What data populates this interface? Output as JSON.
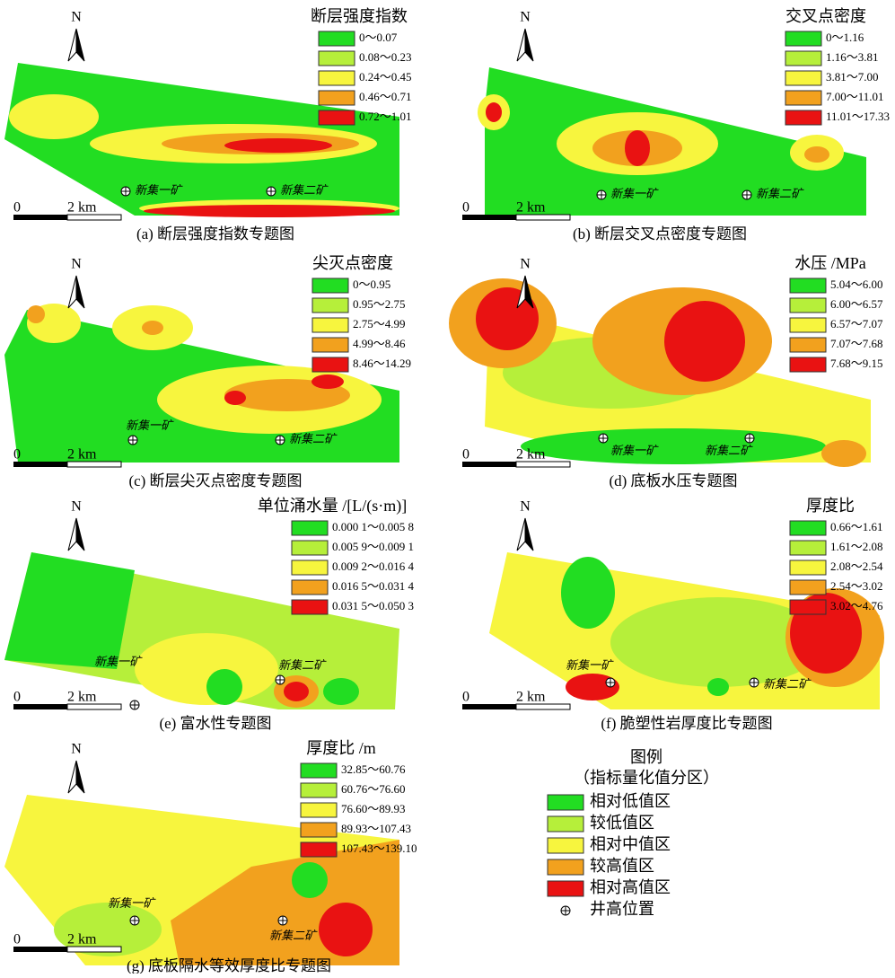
{
  "panels": [
    {
      "caption": "(a)  断层强度指数专题图",
      "legend_title": "断层强度指数",
      "legend_items": [
        "0～0.07",
        "0.08～0.23",
        "0.24～0.45",
        "0.46～0.71",
        "0.72～1.01"
      ],
      "mine_1": "新集一矿",
      "mine_2": "新集二矿",
      "north": "N",
      "scale_start": "0",
      "scale_end": "2 km"
    },
    {
      "caption": "(b)  断层交叉点密度专题图",
      "legend_title": "交叉点密度",
      "legend_items": [
        "0～1.16",
        "1.16～3.81",
        "3.81～7.00",
        "7.00～11.01",
        "11.01～17.33"
      ],
      "mine_1": "新集一矿",
      "mine_2": "新集二矿",
      "north": "N",
      "scale_start": "0",
      "scale_end": "2 km"
    },
    {
      "caption": "(c)  断层尖灭点密度专题图",
      "legend_title": "尖灭点密度",
      "legend_items": [
        "0～0.95",
        "0.95～2.75",
        "2.75～4.99",
        "4.99～8.46",
        "8.46～14.29"
      ],
      "mine_1": "新集一矿",
      "mine_2": "新集二矿",
      "north": "N",
      "scale_start": "0",
      "scale_end": "2 km"
    },
    {
      "caption": "(d)  底板水压专题图",
      "legend_title": "水压 /MPa",
      "legend_items": [
        "5.04～6.00",
        "6.00～6.57",
        "6.57～7.07",
        "7.07～7.68",
        "7.68～9.15"
      ],
      "mine_1": "新集一矿",
      "mine_2": "新集二矿",
      "north": "N",
      "scale_start": "0",
      "scale_end": "2 km"
    },
    {
      "caption": "(e)  富水性专题图",
      "legend_title": "单位涌水量 /[L/(s·m)]",
      "legend_items": [
        "0.000 1～0.005 8",
        "0.005 9～0.009 1",
        "0.009 2～0.016 4",
        "0.016 5～0.031 4",
        "0.031 5～0.050 3"
      ],
      "mine_1": "新集一矿",
      "mine_2": "新集二矿",
      "north": "N",
      "scale_start": "0",
      "scale_end": "2 km"
    },
    {
      "caption": "(f)  脆塑性岩厚度比专题图",
      "legend_title": "厚度比",
      "legend_items": [
        "0.66～1.61",
        "1.61～2.08",
        "2.08～2.54",
        "2.54～3.02",
        "3.02～4.76"
      ],
      "mine_1": "新集一矿",
      "mine_2": "新集二矿",
      "north": "N",
      "scale_start": "0",
      "scale_end": "2 km"
    },
    {
      "caption": "(g)  底板隔水等效厚度比专题图",
      "legend_title": "厚度比 /m",
      "legend_items": [
        "32.85～60.76",
        "60.76～76.60",
        "76.60～89.93",
        "89.93～107.43",
        "107.43～139.10"
      ],
      "mine_1": "新集一矿",
      "mine_2": "新集二矿",
      "north": "N",
      "scale_start": "0",
      "scale_end": "2 km"
    }
  ],
  "legend": {
    "title": "图例",
    "subtitle": "（指标量化值分区）",
    "items": [
      "相对低值区",
      "较低值区",
      "相对中值区",
      "较高值区",
      "相对高值区"
    ],
    "well": "井高位置"
  }
}
